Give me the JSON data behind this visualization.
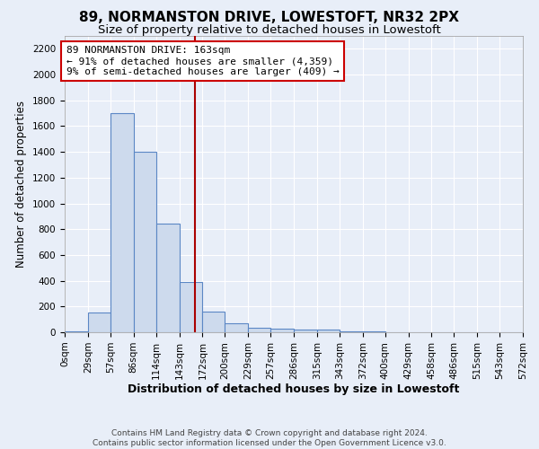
{
  "title1": "89, NORMANSTON DRIVE, LOWESTOFT, NR32 2PX",
  "title2": "Size of property relative to detached houses in Lowestoft",
  "xlabel": "Distribution of detached houses by size in Lowestoft",
  "ylabel": "Number of detached properties",
  "bin_edges": [
    0,
    29,
    57,
    86,
    114,
    143,
    172,
    200,
    229,
    257,
    286,
    315,
    343,
    372,
    400,
    429,
    458,
    486,
    515,
    543,
    572
  ],
  "bar_heights": [
    10,
    150,
    1700,
    1400,
    840,
    390,
    160,
    70,
    35,
    25,
    20,
    20,
    10,
    10,
    3,
    3,
    3,
    3,
    3,
    3
  ],
  "bar_color": "#cddaed",
  "bar_edgecolor": "#5b87c5",
  "property_line_x": 163,
  "property_line_color": "#aa0000",
  "annotation_text": "89 NORMANSTON DRIVE: 163sqm\n← 91% of detached houses are smaller (4,359)\n9% of semi-detached houses are larger (409) →",
  "annotation_box_color": "white",
  "annotation_box_edgecolor": "#cc0000",
  "ylim": [
    0,
    2300
  ],
  "yticks": [
    0,
    200,
    400,
    600,
    800,
    1000,
    1200,
    1400,
    1600,
    1800,
    2000,
    2200
  ],
  "xlim": [
    0,
    572
  ],
  "tick_labels": [
    "0sqm",
    "29sqm",
    "57sqm",
    "86sqm",
    "114sqm",
    "143sqm",
    "172sqm",
    "200sqm",
    "229sqm",
    "257sqm",
    "286sqm",
    "315sqm",
    "343sqm",
    "372sqm",
    "400sqm",
    "429sqm",
    "458sqm",
    "486sqm",
    "515sqm",
    "543sqm",
    "572sqm"
  ],
  "footer_text": "Contains HM Land Registry data © Crown copyright and database right 2024.\nContains public sector information licensed under the Open Government Licence v3.0.",
  "background_color": "#e8eef8",
  "plot_bg_color": "#e8eef8",
  "grid_color": "#ffffff",
  "title1_fontsize": 11,
  "title2_fontsize": 9.5,
  "xlabel_fontsize": 9,
  "ylabel_fontsize": 8.5,
  "tick_fontsize": 7.5,
  "footer_fontsize": 6.5,
  "annot_fontsize": 8
}
